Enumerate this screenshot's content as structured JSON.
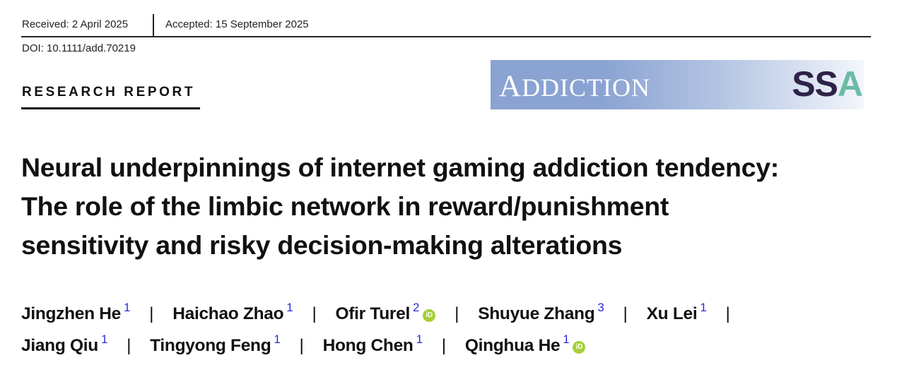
{
  "meta": {
    "received": "Received: 2 April 2025",
    "accepted": "Accepted: 15 September 2025",
    "doi": "DOI: 10.1111/add.70219"
  },
  "section_label": "RESEARCH REPORT",
  "journal": {
    "name_first": "A",
    "name_rest": "DDICTION",
    "society_logo_s": "SS",
    "society_logo_a": "A",
    "colors": {
      "banner": "#8aa3d2",
      "ss": "#2e2248",
      "a": "#6bbca5"
    }
  },
  "title": {
    "line1": "Neural underpinnings of internet gaming addiction tendency:",
    "line2": "The role of the limbic network in reward/punishment",
    "line3": "sensitivity and risky decision-making alterations"
  },
  "separator": "|",
  "orcid_label": "iD",
  "authors": [
    {
      "name": "Jingzhen He",
      "aff": "1"
    },
    {
      "name": "Haichao Zhao",
      "aff": "1"
    },
    {
      "name": "Ofir Turel",
      "aff": "2"
    },
    {
      "name": "Shuyue Zhang",
      "aff": "3"
    },
    {
      "name": "Xu Lei",
      "aff": "1"
    },
    {
      "name": "Jiang Qiu",
      "aff": "1"
    },
    {
      "name": "Tingyong Feng",
      "aff": "1"
    },
    {
      "name": "Hong Chen",
      "aff": "1"
    },
    {
      "name": "Qinghua He",
      "aff": "1"
    }
  ]
}
